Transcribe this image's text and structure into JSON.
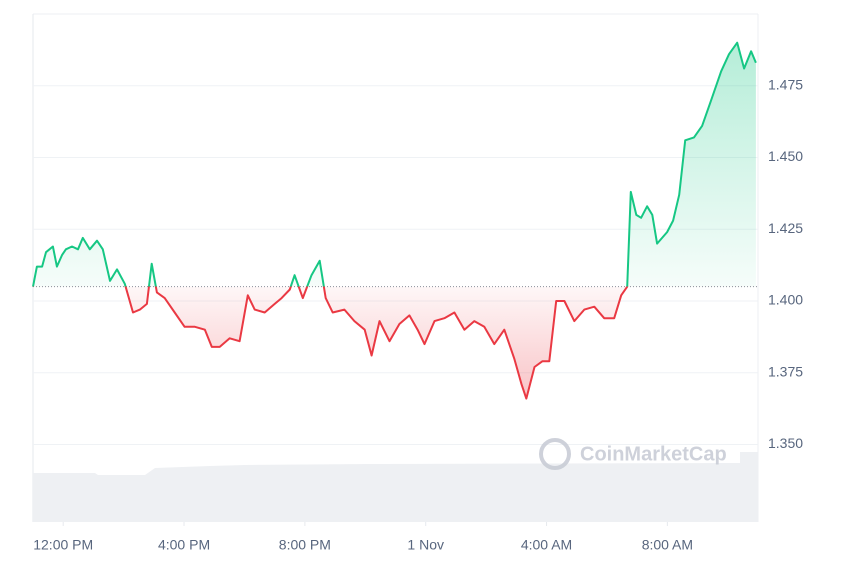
{
  "chart_data": {
    "type": "line",
    "watermark": "CoinMarketCap",
    "baseline": 1.405,
    "colors": {
      "above": "#16c784",
      "below": "#ea3943"
    },
    "x": [
      11.0,
      11.13,
      11.3,
      11.43,
      11.66,
      11.79,
      11.96,
      12.09,
      12.29,
      12.49,
      12.65,
      12.88,
      13.12,
      13.31,
      13.55,
      13.78,
      14.04,
      14.31,
      14.54,
      14.77,
      14.93,
      15.1,
      15.36,
      15.69,
      16.02,
      16.36,
      16.69,
      16.92,
      17.18,
      17.51,
      17.84,
      18.11,
      18.34,
      18.67,
      19.0,
      19.23,
      19.5,
      19.66,
      19.93,
      20.22,
      20.49,
      20.69,
      20.92,
      21.31,
      21.64,
      21.98,
      22.21,
      22.47,
      22.8,
      23.13,
      23.46,
      23.73,
      23.96,
      24.29,
      24.62,
      24.95,
      25.28,
      25.61,
      25.94,
      26.27,
      26.6,
      26.93,
      27.17,
      27.33,
      27.6,
      27.86,
      28.09,
      28.32,
      28.59,
      28.92,
      29.25,
      29.58,
      29.91,
      30.24,
      30.47,
      30.67,
      30.79,
      30.97,
      31.13,
      31.33,
      31.5,
      31.66,
      31.99,
      32.19,
      32.39,
      32.59,
      32.88,
      33.15,
      33.45,
      33.78,
      34.04,
      34.31,
      34.54,
      34.77,
      34.93
    ],
    "values": [
      1.405,
      1.412,
      1.412,
      1.417,
      1.419,
      1.412,
      1.416,
      1.418,
      1.419,
      1.418,
      1.422,
      1.418,
      1.421,
      1.418,
      1.407,
      1.411,
      1.406,
      1.396,
      1.397,
      1.399,
      1.413,
      1.403,
      1.401,
      1.396,
      1.391,
      1.391,
      1.39,
      1.384,
      1.384,
      1.387,
      1.386,
      1.402,
      1.397,
      1.396,
      1.399,
      1.401,
      1.404,
      1.409,
      1.401,
      1.409,
      1.414,
      1.401,
      1.396,
      1.397,
      1.393,
      1.39,
      1.381,
      1.393,
      1.386,
      1.392,
      1.395,
      1.39,
      1.385,
      1.393,
      1.394,
      1.396,
      1.39,
      1.393,
      1.391,
      1.385,
      1.39,
      1.38,
      1.371,
      1.366,
      1.377,
      1.379,
      1.379,
      1.4,
      1.4,
      1.393,
      1.397,
      1.398,
      1.394,
      1.394,
      1.402,
      1.405,
      1.438,
      1.43,
      1.429,
      1.433,
      1.43,
      1.42,
      1.424,
      1.428,
      1.437,
      1.456,
      1.457,
      1.461,
      1.47,
      1.48,
      1.486,
      1.49,
      1.481,
      1.487,
      1.483
    ],
    "xlim": [
      11,
      35
    ],
    "xticks": [
      {
        "value": 12,
        "label": "12:00 PM"
      },
      {
        "value": 16,
        "label": "4:00 PM"
      },
      {
        "value": 20,
        "label": "8:00 PM"
      },
      {
        "value": 24,
        "label": "1 Nov"
      },
      {
        "value": 28,
        "label": "4:00 AM"
      },
      {
        "value": 32,
        "label": "8:00 AM"
      }
    ],
    "ylim": [
      1.323,
      1.5
    ],
    "yticks": [
      {
        "value": 1.35,
        "label": "1.350"
      },
      {
        "value": 1.375,
        "label": "1.375"
      },
      {
        "value": 1.4,
        "label": "1.400"
      },
      {
        "value": 1.425,
        "label": "1.425"
      },
      {
        "value": 1.45,
        "label": "1.450"
      },
      {
        "value": 1.475,
        "label": "1.475"
      }
    ],
    "grid": true
  }
}
